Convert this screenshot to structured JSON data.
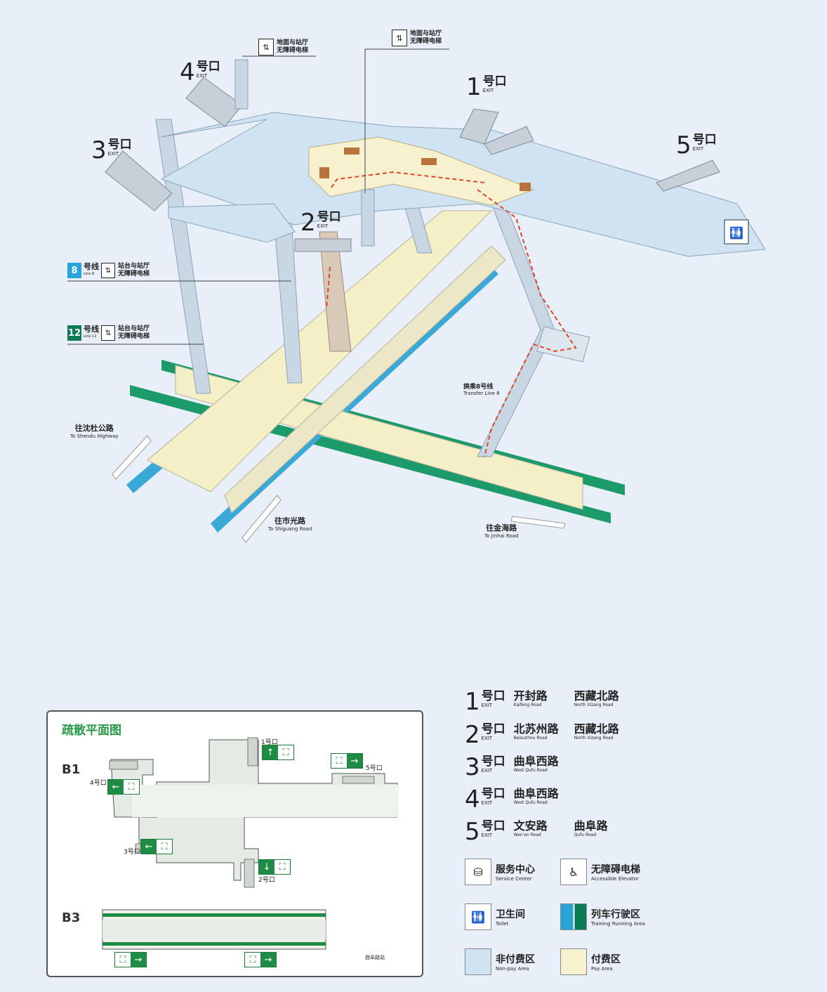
{
  "exits_3d": [
    {
      "num": "4",
      "hao": "号口",
      "en": "EXIT"
    },
    {
      "num": "3",
      "hao": "号口",
      "en": "EXIT"
    },
    {
      "num": "2",
      "hao": "号口",
      "en": "EXIT"
    },
    {
      "num": "1",
      "hao": "号口",
      "en": "EXIT"
    },
    {
      "num": "5",
      "hao": "号口",
      "en": "EXIT"
    }
  ],
  "elevator_labels": [
    {
      "line1": "地面与站厅",
      "line2": "无障碍电梯"
    },
    {
      "line1": "地面与站厅",
      "line2": "无障碍电梯"
    }
  ],
  "line_tags": [
    {
      "num": "8",
      "name": "号线",
      "en": "Line 8",
      "line1": "站台与站厅",
      "line2": "无障碍电梯",
      "color": "#2aa3d8"
    },
    {
      "num": "12",
      "name": "号线",
      "en": "Line 12",
      "line1": "站台与站厅",
      "line2": "无障碍电梯",
      "color": "#0b7a55"
    }
  ],
  "transfer": {
    "cn": "换乘8号线",
    "en": "Transfer Line 8"
  },
  "directions": [
    {
      "cn": "往沈杜公路",
      "en": "To Shendu Highway"
    },
    {
      "cn": "往市光路",
      "en": "To Shiguang Road"
    },
    {
      "cn": "往金海路",
      "en": "To Jinhai Road"
    }
  ],
  "evacuation": {
    "title": "疏散平面图",
    "levels": [
      "B1",
      "B3"
    ],
    "exit_marks": [
      "1号口",
      "2号口",
      "3号口",
      "4号口",
      "5号口"
    ],
    "station_name": "曲阜路站"
  },
  "legend_exits": [
    {
      "num": "1",
      "hao": "号口",
      "en": "EXIT",
      "r1": "开封路",
      "r1en": "Kaifeng Road",
      "r2": "西藏北路",
      "r2en": "North Xizang Road"
    },
    {
      "num": "2",
      "hao": "号口",
      "en": "EXIT",
      "r1": "北苏州路",
      "r1en": "Beisuzhou Road",
      "r2": "西藏北路",
      "r2en": "North Xizang Road"
    },
    {
      "num": "3",
      "hao": "号口",
      "en": "EXIT",
      "r1": "曲阜西路",
      "r1en": "West Qufu Road",
      "r2": "",
      "r2en": ""
    },
    {
      "num": "4",
      "hao": "号口",
      "en": "EXIT",
      "r1": "曲阜西路",
      "r1en": "West Qufu Road",
      "r2": "",
      "r2en": ""
    },
    {
      "num": "5",
      "hao": "号口",
      "en": "EXIT",
      "r1": "文安路",
      "r1en": "Wen'an Road",
      "r2": "曲阜路",
      "r2en": "Qufu Road"
    }
  ],
  "legend_items": [
    {
      "cn": "服务中心",
      "en": "Service Center",
      "icon": "service-center-icon"
    },
    {
      "cn": "无障碍电梯",
      "en": "Accessible Elevator",
      "icon": "accessible-elevator-icon"
    },
    {
      "cn": "卫生间",
      "en": "Toilet",
      "icon": "toilet-icon"
    },
    {
      "cn": "列车行驶区",
      "en": "Training Running Area",
      "icon": "track-area-icon"
    },
    {
      "cn": "非付费区",
      "en": "Non-pay Area",
      "icon": "non-pay-area-swatch"
    },
    {
      "cn": "付费区",
      "en": "Pay Area",
      "icon": "pay-area-swatch"
    }
  ],
  "colors": {
    "nonpay": "#cfe3f2",
    "pay": "#f7f1cf",
    "line8": "#2aa3d8",
    "line12": "#0b7a55",
    "exit_green": "#1e8c44",
    "route": "#e0442a"
  }
}
